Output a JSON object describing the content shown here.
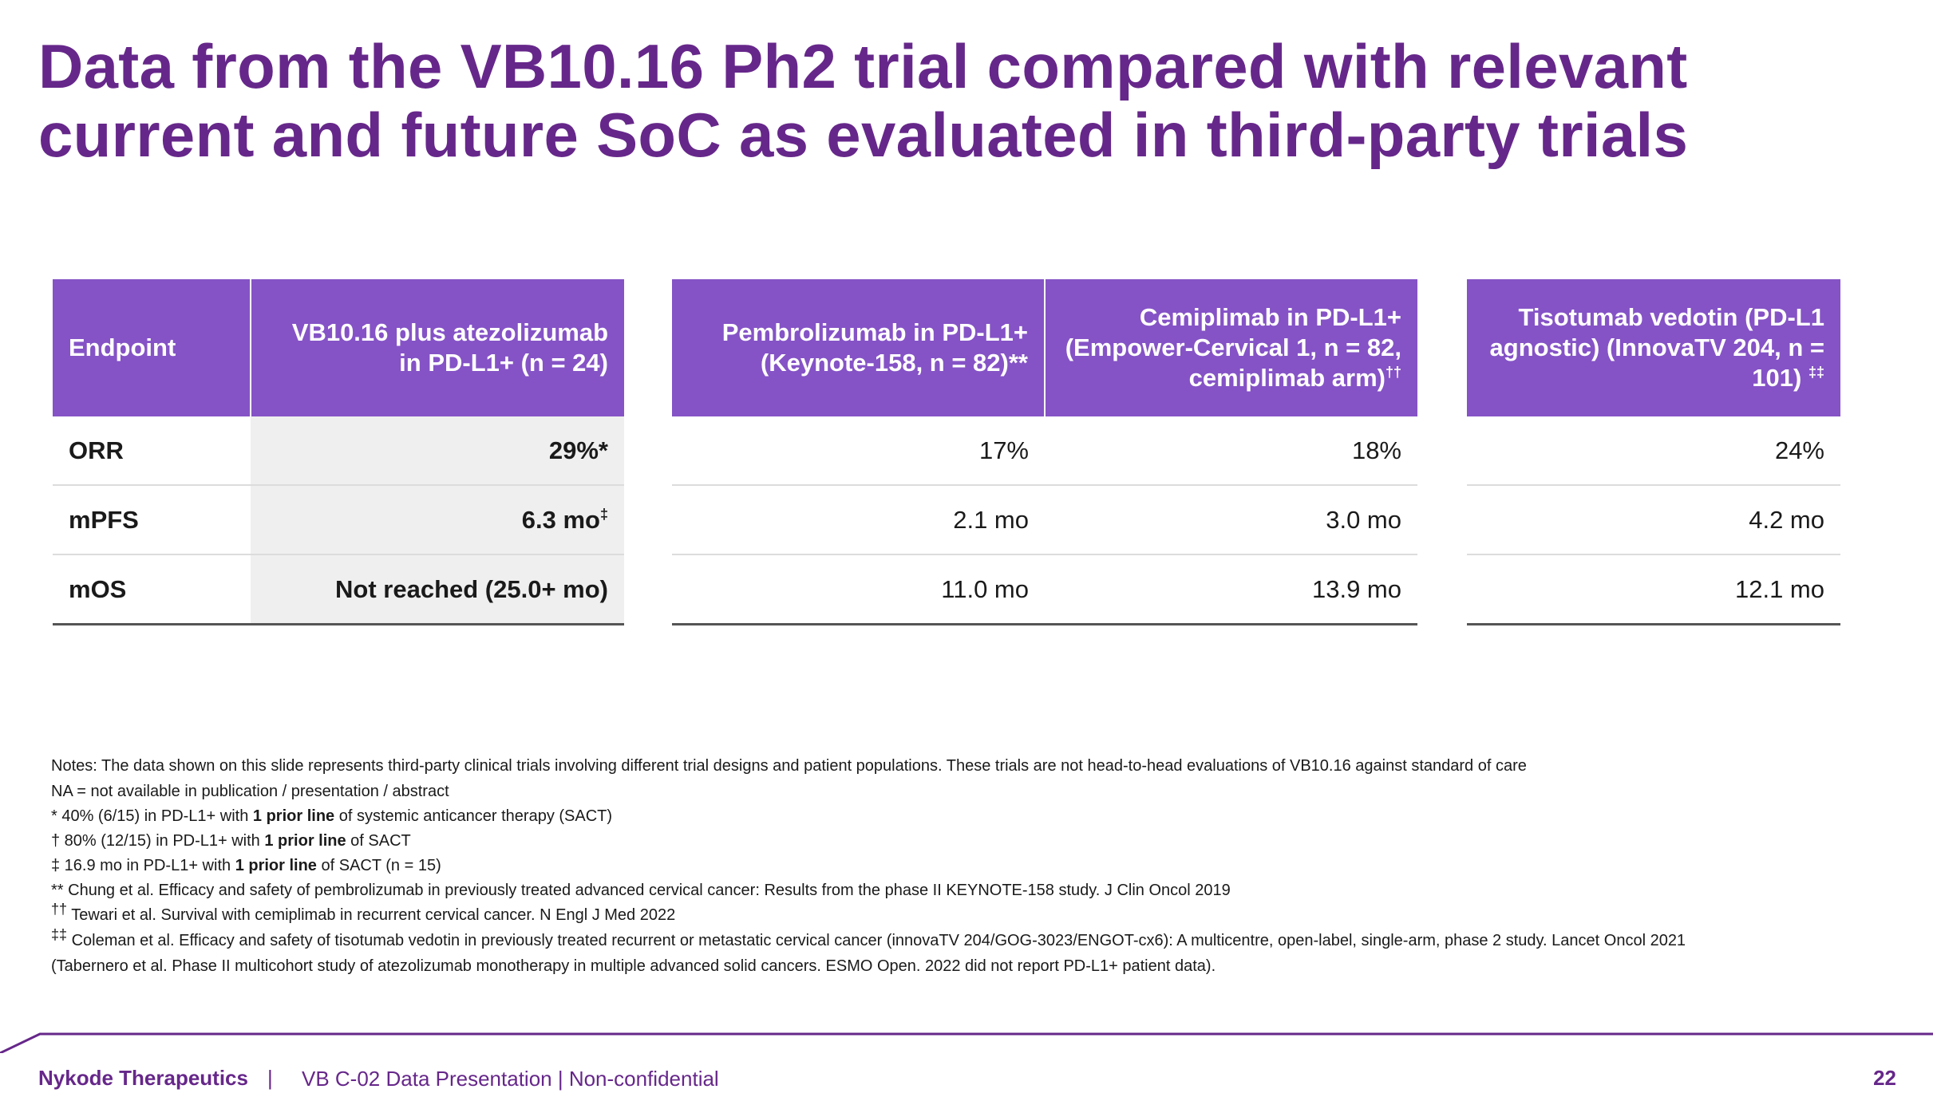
{
  "title": "Data from the VB10.16 Ph2 trial compared with relevant current and future SoC as evaluated in third-party trials",
  "table1": {
    "headers": [
      "Endpoint",
      "VB10.16 plus atezolizumab in PD-L1+ (n = 24)"
    ],
    "rows": [
      {
        "label": "ORR",
        "value": "29%*",
        "sup": ""
      },
      {
        "label": "mPFS",
        "value": "6.3 mo",
        "sup": "‡"
      },
      {
        "label": "mOS",
        "value": "Not reached (25.0+ mo)",
        "sup": ""
      }
    ]
  },
  "table2": {
    "headers": [
      "Pembrolizumab in PD-L1+ (Keynote-158, n = 82)**",
      "Cemiplimab in PD-L1+ (Empower-Cervical 1, n = 82, cemiplimab arm)",
      "††"
    ],
    "rows": [
      [
        "17%",
        "18%"
      ],
      [
        "2.1 mo",
        "3.0 mo"
      ],
      [
        "11.0 mo",
        "13.9 mo"
      ]
    ]
  },
  "table3": {
    "header": "Tisotumab vedotin (PD-L1 agnostic) (InnovaTV 204, n = 101)",
    "header_sup": "‡‡",
    "rows": [
      "24%",
      "4.2 mo",
      "12.1 mo"
    ]
  },
  "notes": {
    "line1": "Notes: The data shown on this slide represents third-party clinical trials involving different trial designs and patient populations. These trials are not head-to-head evaluations of VB10.16 against standard of care",
    "line2": "NA = not available in publication / presentation / abstract",
    "star_a": "* 40% (6/15) in PD-L1+ with ",
    "star_b": "1 prior line",
    "star_c": " of systemic anticancer therapy (SACT)",
    "dagger_a": "† 80% (12/15) in PD-L1+ with ",
    "dagger_b": "1 prior line",
    "dagger_c": " of SACT",
    "ddagger_a": "‡ 16.9 mo in PD-L1+ with ",
    "ddagger_b": "1 prior line",
    "ddagger_c": " of SACT (n = 15)",
    "ref_chung": "** Chung et al. Efficacy and safety of pembrolizumab in previously treated advanced cervical cancer: Results from the phase II KEYNOTE-158 study. J Clin Oncol 2019",
    "ref_tewari_mark": "††",
    "ref_tewari": " Tewari et al. Survival with cemiplimab in recurrent cervical cancer. N Engl J Med 2022",
    "ref_coleman_mark": "‡‡",
    "ref_coleman": " Coleman et al. Efficacy and safety of tisotumab vedotin in previously treated recurrent or metastatic cervical cancer (innovaTV 204/GOG-3023/ENGOT-cx6): A multicentre, open-label, single-arm, phase 2 study. Lancet Oncol 2021",
    "ref_tabernero": "(Tabernero et al. Phase II multicohort study of atezolizumab monotherapy in multiple advanced solid cancers. ESMO Open. 2022 did not report PD-L1+ patient data)."
  },
  "footer": {
    "brand": "Nykode Therapeutics",
    "separator": "|",
    "presentation": "VB C-02 Data Presentation | Non-confidential",
    "page": "22"
  },
  "colors": {
    "brand_purple": "#66278a",
    "header_purple": "#8553c6",
    "grey_cell": "#efefef"
  }
}
